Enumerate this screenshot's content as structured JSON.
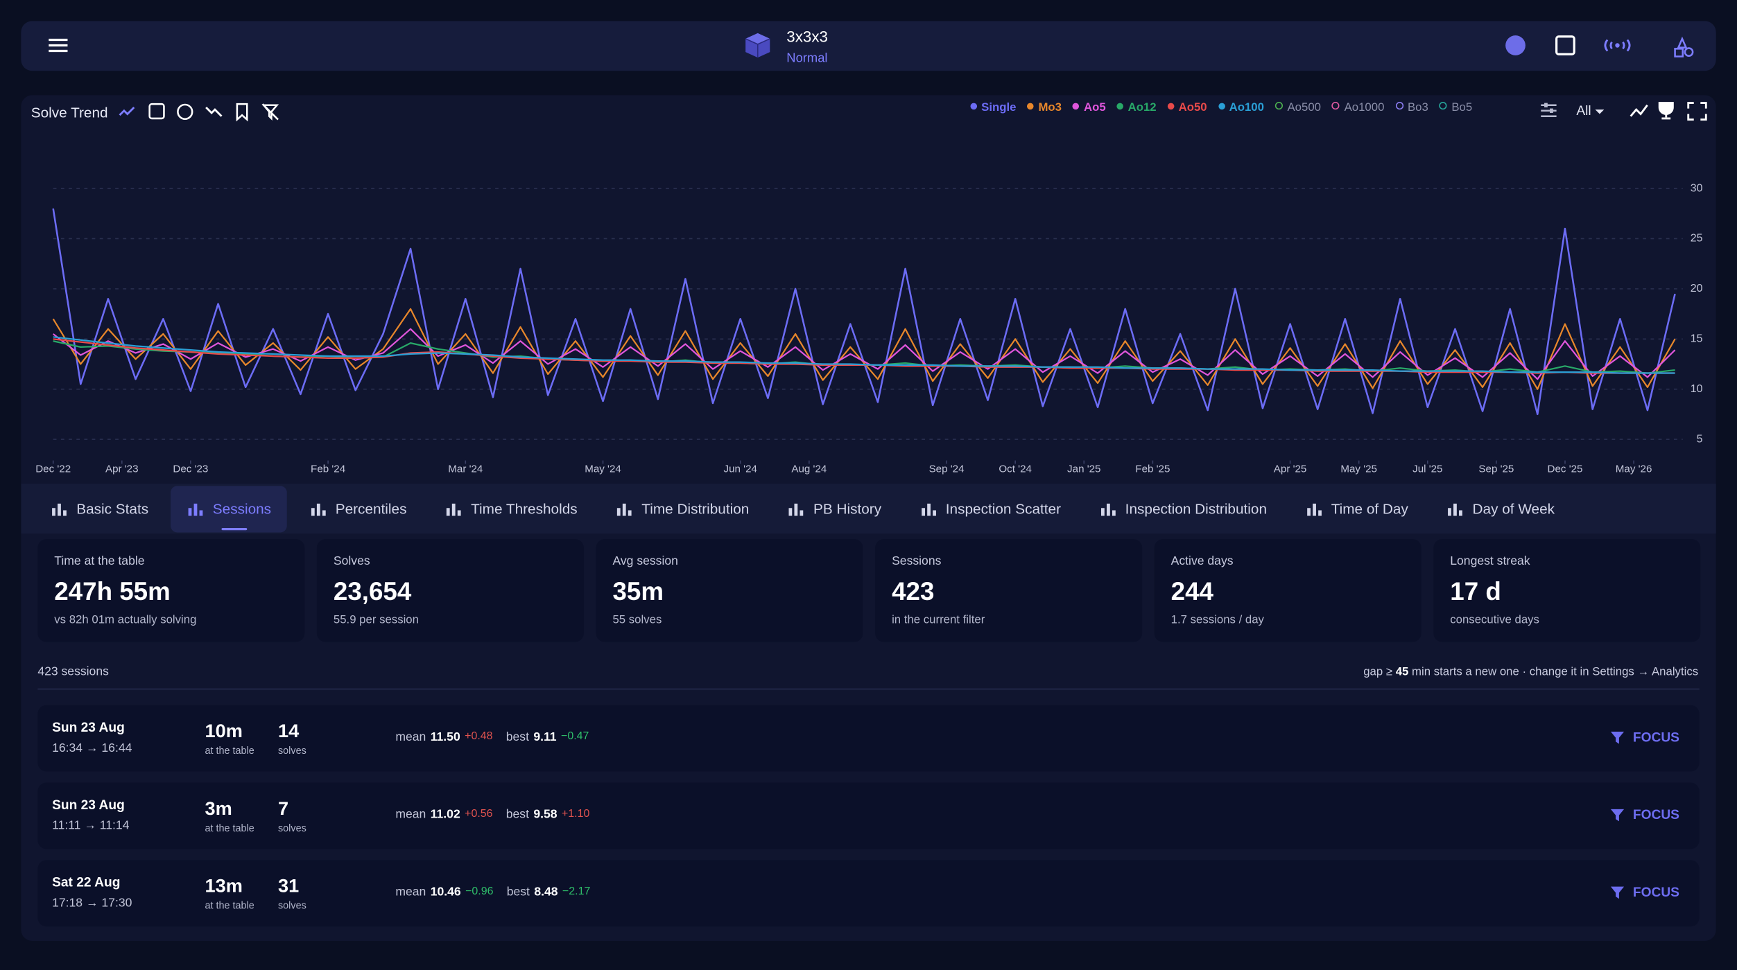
{
  "header": {
    "title": "3x3x3",
    "subtitle": "Normal"
  },
  "chart_data": {
    "type": "line",
    "title": "Solve Trend",
    "range_filter": "All",
    "xlim": [
      0,
      59
    ],
    "xticks": [
      {
        "value": 0,
        "label": "Dec '22"
      },
      {
        "value": 2.5,
        "label": "Apr '23"
      },
      {
        "value": 5,
        "label": "Dec '23"
      },
      {
        "value": 10,
        "label": "Feb '24"
      },
      {
        "value": 15,
        "label": "Mar '24"
      },
      {
        "value": 20,
        "label": "May '24"
      },
      {
        "value": 25,
        "label": "Jun '24"
      },
      {
        "value": 27.5,
        "label": "Aug '24"
      },
      {
        "value": 32.5,
        "label": "Sep '24"
      },
      {
        "value": 35,
        "label": "Oct '24"
      },
      {
        "value": 37.5,
        "label": "Jan '25"
      },
      {
        "value": 40,
        "label": "Feb '25"
      },
      {
        "value": 45,
        "label": "Apr '25"
      },
      {
        "value": 47.5,
        "label": "May '25"
      },
      {
        "value": 50,
        "label": "Jul '25"
      },
      {
        "value": 52.5,
        "label": "Sep '25"
      },
      {
        "value": 55,
        "label": "Dec '25"
      },
      {
        "value": 57.5,
        "label": "May '26"
      }
    ],
    "ylim": [
      3,
      35
    ],
    "yticks": [
      5,
      10,
      15,
      20,
      25,
      30
    ],
    "grid": true,
    "series": [
      {
        "name": "Single",
        "color": "#6c6cf5",
        "values": [
          28,
          10.5,
          19,
          11,
          17,
          9.8,
          18.5,
          10.2,
          16,
          9.5,
          17.5,
          9.9,
          15.5,
          24,
          10,
          19,
          9.2,
          22,
          9.4,
          17,
          8.8,
          18,
          9,
          21,
          8.6,
          17,
          9.1,
          20,
          8.5,
          16.5,
          8.7,
          22,
          8.4,
          17,
          8.9,
          19,
          8.3,
          16,
          8.2,
          18,
          8.6,
          15.5,
          7.9,
          20,
          8.1,
          16.5,
          8,
          17,
          7.6,
          19,
          8.2,
          16,
          7.8,
          18,
          7.5,
          26,
          8,
          17,
          7.9,
          19.5
        ]
      },
      {
        "name": "Mo3",
        "color": "#e8872b",
        "values": [
          17,
          12.5,
          16,
          13,
          15.5,
          12,
          15.8,
          12.4,
          14.6,
          11.9,
          15.2,
          12,
          14,
          18,
          12.5,
          15.5,
          11.6,
          16.2,
          11.5,
          14.8,
          11.2,
          15.3,
          11.4,
          15.8,
          11,
          14.6,
          11.3,
          15.5,
          10.9,
          14.2,
          11,
          16,
          10.8,
          14.5,
          11.1,
          15,
          10.7,
          14,
          10.6,
          14.8,
          10.8,
          13.8,
          10.4,
          15,
          10.5,
          14.1,
          10.3,
          14.5,
          10.1,
          14.8,
          10.5,
          13.9,
          10.2,
          14.6,
          10,
          16.5,
          10.3,
          14.2,
          10.2,
          15
        ]
      },
      {
        "name": "Ao5",
        "color": "#e056dc",
        "values": [
          15.5,
          13.4,
          14.8,
          13.6,
          14.5,
          13,
          14.6,
          13.2,
          14,
          12.8,
          14.2,
          12.9,
          13.6,
          16,
          13.3,
          14.4,
          12.6,
          14.8,
          12.5,
          14,
          12.2,
          14.2,
          12.3,
          14.5,
          12,
          13.8,
          12.2,
          14.2,
          11.9,
          13.5,
          12,
          14.4,
          11.8,
          13.7,
          12,
          14,
          11.7,
          13.3,
          11.6,
          13.8,
          11.7,
          13,
          11.4,
          13.9,
          11.5,
          13.3,
          11.3,
          13.5,
          11.2,
          13.7,
          11.4,
          13.1,
          11.2,
          13.6,
          11,
          14.8,
          11.3,
          13.3,
          11.2,
          13.9
        ]
      },
      {
        "name": "Ao12",
        "color": "#28a868",
        "values": [
          14.8,
          14.2,
          14.3,
          14,
          13.8,
          13.7,
          13.6,
          13.5,
          13.3,
          13.2,
          13.3,
          13.1,
          13.2,
          14.6,
          14,
          13.6,
          13.2,
          13.3,
          13,
          12.9,
          12.8,
          12.9,
          12.7,
          12.9,
          12.6,
          12.6,
          12.5,
          12.7,
          12.4,
          12.4,
          12.4,
          12.6,
          12.3,
          12.4,
          12.3,
          12.4,
          12.2,
          12.2,
          12.1,
          12.3,
          12.1,
          12.1,
          12,
          12.2,
          11.9,
          12,
          11.9,
          12,
          11.8,
          12.1,
          11.8,
          11.9,
          11.7,
          12,
          11.7,
          12.3,
          11.7,
          11.8,
          11.6,
          11.9
        ]
      },
      {
        "name": "Ao50",
        "color": "#e84a4a",
        "values": [
          15,
          14.7,
          14.4,
          14.1,
          13.9,
          13.7,
          13.5,
          13.4,
          13.3,
          13.2,
          13.1,
          13.1,
          13.2,
          13.6,
          13.7,
          13.5,
          13.3,
          13.1,
          13,
          12.9,
          12.8,
          12.8,
          12.7,
          12.7,
          12.6,
          12.6,
          12.5,
          12.5,
          12.4,
          12.4,
          12.4,
          12.3,
          12.3,
          12.3,
          12.2,
          12.2,
          12.2,
          12.1,
          12.1,
          12.1,
          12,
          12,
          12,
          11.9,
          11.9,
          11.9,
          11.8,
          11.8,
          11.8,
          11.8,
          11.7,
          11.7,
          11.7,
          11.7,
          11.6,
          11.7,
          11.6,
          11.6,
          11.6,
          11.6
        ]
      },
      {
        "name": "Ao100",
        "color": "#2a9fd6",
        "values": [
          15.2,
          14.9,
          14.6,
          14.3,
          14.1,
          13.9,
          13.7,
          13.6,
          13.5,
          13.4,
          13.3,
          13.3,
          13.3,
          13.5,
          13.6,
          13.5,
          13.4,
          13.2,
          13.1,
          13,
          12.9,
          12.9,
          12.8,
          12.8,
          12.7,
          12.7,
          12.6,
          12.6,
          12.5,
          12.5,
          12.4,
          12.4,
          12.4,
          12.3,
          12.3,
          12.3,
          12.2,
          12.2,
          12.2,
          12.1,
          12.1,
          12.1,
          12,
          12,
          12,
          11.9,
          11.9,
          11.9,
          11.9,
          11.8,
          11.8,
          11.8,
          11.8,
          11.7,
          11.7,
          11.7,
          11.7,
          11.6,
          11.6,
          11.6
        ]
      }
    ],
    "inactive_series": [
      {
        "name": "Ao500",
        "color": "#4caf50"
      },
      {
        "name": "Ao1000",
        "color": "#e05aa0"
      },
      {
        "name": "Bo3",
        "color": "#8a7cf0"
      },
      {
        "name": "Bo5",
        "color": "#26a69a"
      }
    ]
  },
  "tabs": {
    "active": 1,
    "items": [
      "Basic Stats",
      "Sessions",
      "Percentiles",
      "Time Thresholds",
      "Time Distribution",
      "PB History",
      "Inspection Scatter",
      "Inspection Distribution",
      "Time of Day",
      "Day of Week"
    ]
  },
  "stats": [
    {
      "label": "Time at the table",
      "value": "247h 55m",
      "sub": "vs 82h 01m actually solving"
    },
    {
      "label": "Solves",
      "value": "23,654",
      "sub": "55.9 per session"
    },
    {
      "label": "Avg session",
      "value": "35m",
      "sub": "55 solves"
    },
    {
      "label": "Sessions",
      "value": "423",
      "sub": "in the current filter"
    },
    {
      "label": "Active days",
      "value": "244",
      "sub": "1.7 sessions / day"
    },
    {
      "label": "Longest streak",
      "value": "17 d",
      "sub": "consecutive days"
    }
  ],
  "sessions": {
    "count_label": "423 sessions",
    "gap_note": [
      "gap ≥ ",
      "45",
      " min starts a new one · change it in Settings → Analytics"
    ],
    "labels": {
      "duration": "at the table",
      "solves": "solves",
      "mean": "mean",
      "best": "best",
      "action": "FOCUS"
    },
    "rows": [
      {
        "date": "Sun 23 Aug",
        "time": "16:34 → 16:44",
        "duration": "10m",
        "solves": "14",
        "mean": "11.50",
        "mean_delta": "+0.48",
        "best": "9.11",
        "best_delta": "−0.47"
      },
      {
        "date": "Sun 23 Aug",
        "time": "11:11 → 11:14",
        "duration": "3m",
        "solves": "7",
        "mean": "11.02",
        "mean_delta": "+0.56",
        "best": "9.58",
        "best_delta": "+1.10"
      },
      {
        "date": "Sat 22 Aug",
        "time": "17:18 → 17:30",
        "duration": "13m",
        "solves": "31",
        "mean": "10.46",
        "mean_delta": "−0.96",
        "best": "8.48",
        "best_delta": "−2.17"
      }
    ]
  }
}
